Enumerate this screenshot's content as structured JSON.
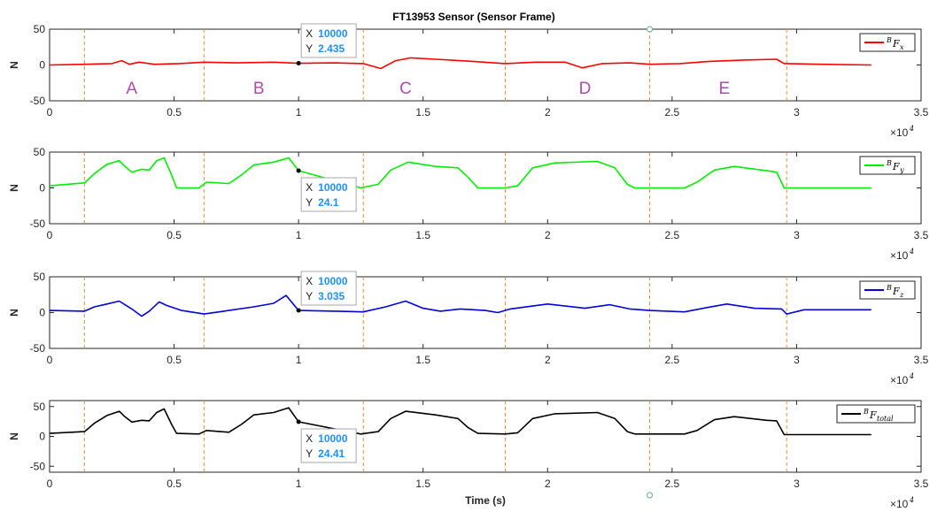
{
  "chart_data": {
    "type": "line",
    "title": "FT13953 Sensor (Sensor Frame)",
    "xlabel": "Time (s)",
    "x_exponent_label": "×10",
    "x_exponent_power": "4",
    "xlim": [
      0,
      35000
    ],
    "x_ticks": [
      "0",
      "0.5",
      "1",
      "1.5",
      "2",
      "2.5",
      "3",
      "3.5"
    ],
    "segment_boundaries": [
      1400,
      6200,
      12600,
      18300,
      24100,
      29600
    ],
    "segment_labels": [
      {
        "text": "A",
        "x": 3300
      },
      {
        "text": "B",
        "x": 8400
      },
      {
        "text": "C",
        "x": 14300
      },
      {
        "text": "D",
        "x": 21500
      },
      {
        "text": "E",
        "x": 27100
      }
    ],
    "panels": [
      {
        "ylabel": "N",
        "ylim": [
          -50,
          50
        ],
        "y_ticks": [
          "-50",
          "0",
          "50"
        ],
        "legend_base": "F",
        "legend_sup": "B",
        "legend_sub": "x",
        "color": "#ff0000",
        "series": [
          {
            "x": 0,
            "y": 0
          },
          {
            "x": 1400,
            "y": 1
          },
          {
            "x": 2500,
            "y": 2
          },
          {
            "x": 2900,
            "y": 6
          },
          {
            "x": 3200,
            "y": 1
          },
          {
            "x": 3600,
            "y": 4
          },
          {
            "x": 4200,
            "y": 1
          },
          {
            "x": 5200,
            "y": 2
          },
          {
            "x": 6200,
            "y": 4
          },
          {
            "x": 7500,
            "y": 3
          },
          {
            "x": 9000,
            "y": 4
          },
          {
            "x": 10000,
            "y": 2.4
          },
          {
            "x": 11500,
            "y": 3
          },
          {
            "x": 12600,
            "y": 2
          },
          {
            "x": 13300,
            "y": -5
          },
          {
            "x": 13900,
            "y": 6
          },
          {
            "x": 14500,
            "y": 10
          },
          {
            "x": 15500,
            "y": 8
          },
          {
            "x": 17000,
            "y": 5
          },
          {
            "x": 18300,
            "y": 2
          },
          {
            "x": 19500,
            "y": 4
          },
          {
            "x": 20700,
            "y": 4
          },
          {
            "x": 21400,
            "y": -4
          },
          {
            "x": 22200,
            "y": 2
          },
          {
            "x": 23300,
            "y": 3
          },
          {
            "x": 24100,
            "y": 1
          },
          {
            "x": 25300,
            "y": 2
          },
          {
            "x": 26500,
            "y": 5
          },
          {
            "x": 28000,
            "y": 7
          },
          {
            "x": 29200,
            "y": 8
          },
          {
            "x": 29500,
            "y": 2
          },
          {
            "x": 31000,
            "y": 1
          },
          {
            "x": 33000,
            "y": 0
          }
        ],
        "datatip": {
          "x_label": "X",
          "x_value": "10000",
          "y_label": "Y",
          "y_value": "2.435",
          "x": 10000,
          "y": 2.435
        }
      },
      {
        "ylabel": "N",
        "ylim": [
          -50,
          50
        ],
        "y_ticks": [
          "-50",
          "0",
          "50"
        ],
        "legend_base": "F",
        "legend_sup": "B",
        "legend_sub": "y",
        "color": "#00ee00",
        "series": [
          {
            "x": 0,
            "y": 3
          },
          {
            "x": 1400,
            "y": 7
          },
          {
            "x": 1800,
            "y": 20
          },
          {
            "x": 2300,
            "y": 33
          },
          {
            "x": 2800,
            "y": 38
          },
          {
            "x": 3000,
            "y": 31
          },
          {
            "x": 3300,
            "y": 22
          },
          {
            "x": 3700,
            "y": 26
          },
          {
            "x": 4000,
            "y": 25
          },
          {
            "x": 4300,
            "y": 38
          },
          {
            "x": 4600,
            "y": 42
          },
          {
            "x": 4900,
            "y": 18
          },
          {
            "x": 5100,
            "y": 0
          },
          {
            "x": 6000,
            "y": 0
          },
          {
            "x": 6300,
            "y": 8
          },
          {
            "x": 7200,
            "y": 6
          },
          {
            "x": 7700,
            "y": 18
          },
          {
            "x": 8200,
            "y": 32
          },
          {
            "x": 9000,
            "y": 36
          },
          {
            "x": 9600,
            "y": 42
          },
          {
            "x": 10000,
            "y": 24.1
          },
          {
            "x": 12500,
            "y": 0
          },
          {
            "x": 13200,
            "y": 5
          },
          {
            "x": 13700,
            "y": 25
          },
          {
            "x": 14400,
            "y": 36
          },
          {
            "x": 15500,
            "y": 30
          },
          {
            "x": 16400,
            "y": 28
          },
          {
            "x": 16800,
            "y": 15
          },
          {
            "x": 17200,
            "y": 0
          },
          {
            "x": 18300,
            "y": 0
          },
          {
            "x": 18800,
            "y": 3
          },
          {
            "x": 19400,
            "y": 28
          },
          {
            "x": 20300,
            "y": 35
          },
          {
            "x": 22000,
            "y": 37
          },
          {
            "x": 22700,
            "y": 28
          },
          {
            "x": 23200,
            "y": 5
          },
          {
            "x": 23500,
            "y": 0
          },
          {
            "x": 25500,
            "y": 0
          },
          {
            "x": 26000,
            "y": 8
          },
          {
            "x": 26700,
            "y": 25
          },
          {
            "x": 27500,
            "y": 30
          },
          {
            "x": 28800,
            "y": 24
          },
          {
            "x": 29200,
            "y": 22
          },
          {
            "x": 29500,
            "y": 0
          },
          {
            "x": 33000,
            "y": 0
          }
        ],
        "datatip": {
          "x_label": "X",
          "x_value": "10000",
          "y_label": "Y",
          "y_value": "24.1",
          "x": 10000,
          "y": 24.1
        }
      },
      {
        "ylabel": "N",
        "ylim": [
          -50,
          50
        ],
        "y_ticks": [
          "-50",
          "0",
          "50"
        ],
        "legend_base": "F",
        "legend_sup": "B",
        "legend_sub": "z",
        "color": "#0000dd",
        "series": [
          {
            "x": 0,
            "y": 3
          },
          {
            "x": 1400,
            "y": 2
          },
          {
            "x": 1800,
            "y": 8
          },
          {
            "x": 2300,
            "y": 12
          },
          {
            "x": 2800,
            "y": 16
          },
          {
            "x": 3300,
            "y": 5
          },
          {
            "x": 3700,
            "y": -5
          },
          {
            "x": 4000,
            "y": 2
          },
          {
            "x": 4400,
            "y": 15
          },
          {
            "x": 4700,
            "y": 10
          },
          {
            "x": 5300,
            "y": 3
          },
          {
            "x": 6200,
            "y": -2
          },
          {
            "x": 7000,
            "y": 2
          },
          {
            "x": 8200,
            "y": 8
          },
          {
            "x": 9000,
            "y": 13
          },
          {
            "x": 9500,
            "y": 24
          },
          {
            "x": 10000,
            "y": 3.0
          },
          {
            "x": 11500,
            "y": 2
          },
          {
            "x": 12600,
            "y": 1
          },
          {
            "x": 13500,
            "y": 8
          },
          {
            "x": 14300,
            "y": 16
          },
          {
            "x": 15000,
            "y": 6
          },
          {
            "x": 15700,
            "y": 2
          },
          {
            "x": 16500,
            "y": 5
          },
          {
            "x": 17500,
            "y": 3
          },
          {
            "x": 18000,
            "y": 0
          },
          {
            "x": 18500,
            "y": 5
          },
          {
            "x": 20000,
            "y": 12
          },
          {
            "x": 21500,
            "y": 6
          },
          {
            "x": 22500,
            "y": 11
          },
          {
            "x": 23300,
            "y": 5
          },
          {
            "x": 24100,
            "y": 3
          },
          {
            "x": 25500,
            "y": 1
          },
          {
            "x": 26400,
            "y": 7
          },
          {
            "x": 27200,
            "y": 12
          },
          {
            "x": 28300,
            "y": 6
          },
          {
            "x": 29400,
            "y": 5
          },
          {
            "x": 29600,
            "y": -2
          },
          {
            "x": 30300,
            "y": 4
          },
          {
            "x": 33000,
            "y": 4
          }
        ],
        "datatip": {
          "x_label": "X",
          "x_value": "10000",
          "y_label": "Y",
          "y_value": "3.035",
          "x": 10000,
          "y": 3.035
        }
      },
      {
        "ylabel": "N",
        "ylim": [
          -60,
          60
        ],
        "y_ticks": [
          "-50",
          "0",
          "50"
        ],
        "y_tick_values": [
          -50,
          0,
          50
        ],
        "legend_base": "F",
        "legend_sup": "B",
        "legend_sub": "total",
        "color": "#000000",
        "series": [
          {
            "x": 0,
            "y": 5
          },
          {
            "x": 1400,
            "y": 8
          },
          {
            "x": 1800,
            "y": 22
          },
          {
            "x": 2300,
            "y": 35
          },
          {
            "x": 2800,
            "y": 42
          },
          {
            "x": 3000,
            "y": 34
          },
          {
            "x": 3300,
            "y": 24
          },
          {
            "x": 3700,
            "y": 27
          },
          {
            "x": 4000,
            "y": 26
          },
          {
            "x": 4300,
            "y": 40
          },
          {
            "x": 4600,
            "y": 46
          },
          {
            "x": 4900,
            "y": 20
          },
          {
            "x": 5100,
            "y": 5
          },
          {
            "x": 6000,
            "y": 4
          },
          {
            "x": 6300,
            "y": 10
          },
          {
            "x": 7200,
            "y": 7
          },
          {
            "x": 7700,
            "y": 20
          },
          {
            "x": 8200,
            "y": 36
          },
          {
            "x": 9000,
            "y": 40
          },
          {
            "x": 9600,
            "y": 48
          },
          {
            "x": 10000,
            "y": 24.41
          },
          {
            "x": 12500,
            "y": 4
          },
          {
            "x": 13200,
            "y": 8
          },
          {
            "x": 13700,
            "y": 30
          },
          {
            "x": 14300,
            "y": 42
          },
          {
            "x": 15500,
            "y": 36
          },
          {
            "x": 16400,
            "y": 30
          },
          {
            "x": 16800,
            "y": 15
          },
          {
            "x": 17200,
            "y": 5
          },
          {
            "x": 18300,
            "y": 4
          },
          {
            "x": 18800,
            "y": 6
          },
          {
            "x": 19400,
            "y": 30
          },
          {
            "x": 20300,
            "y": 38
          },
          {
            "x": 22000,
            "y": 40
          },
          {
            "x": 22700,
            "y": 30
          },
          {
            "x": 23200,
            "y": 8
          },
          {
            "x": 23500,
            "y": 4
          },
          {
            "x": 25500,
            "y": 4
          },
          {
            "x": 26000,
            "y": 10
          },
          {
            "x": 26700,
            "y": 28
          },
          {
            "x": 27500,
            "y": 33
          },
          {
            "x": 28800,
            "y": 27
          },
          {
            "x": 29200,
            "y": 26
          },
          {
            "x": 29500,
            "y": 3
          },
          {
            "x": 33000,
            "y": 3
          }
        ],
        "datatip": {
          "x_label": "X",
          "x_value": "10000",
          "y_label": "Y",
          "y_value": "24.41",
          "x": 10000,
          "y": 24.41
        }
      }
    ]
  }
}
